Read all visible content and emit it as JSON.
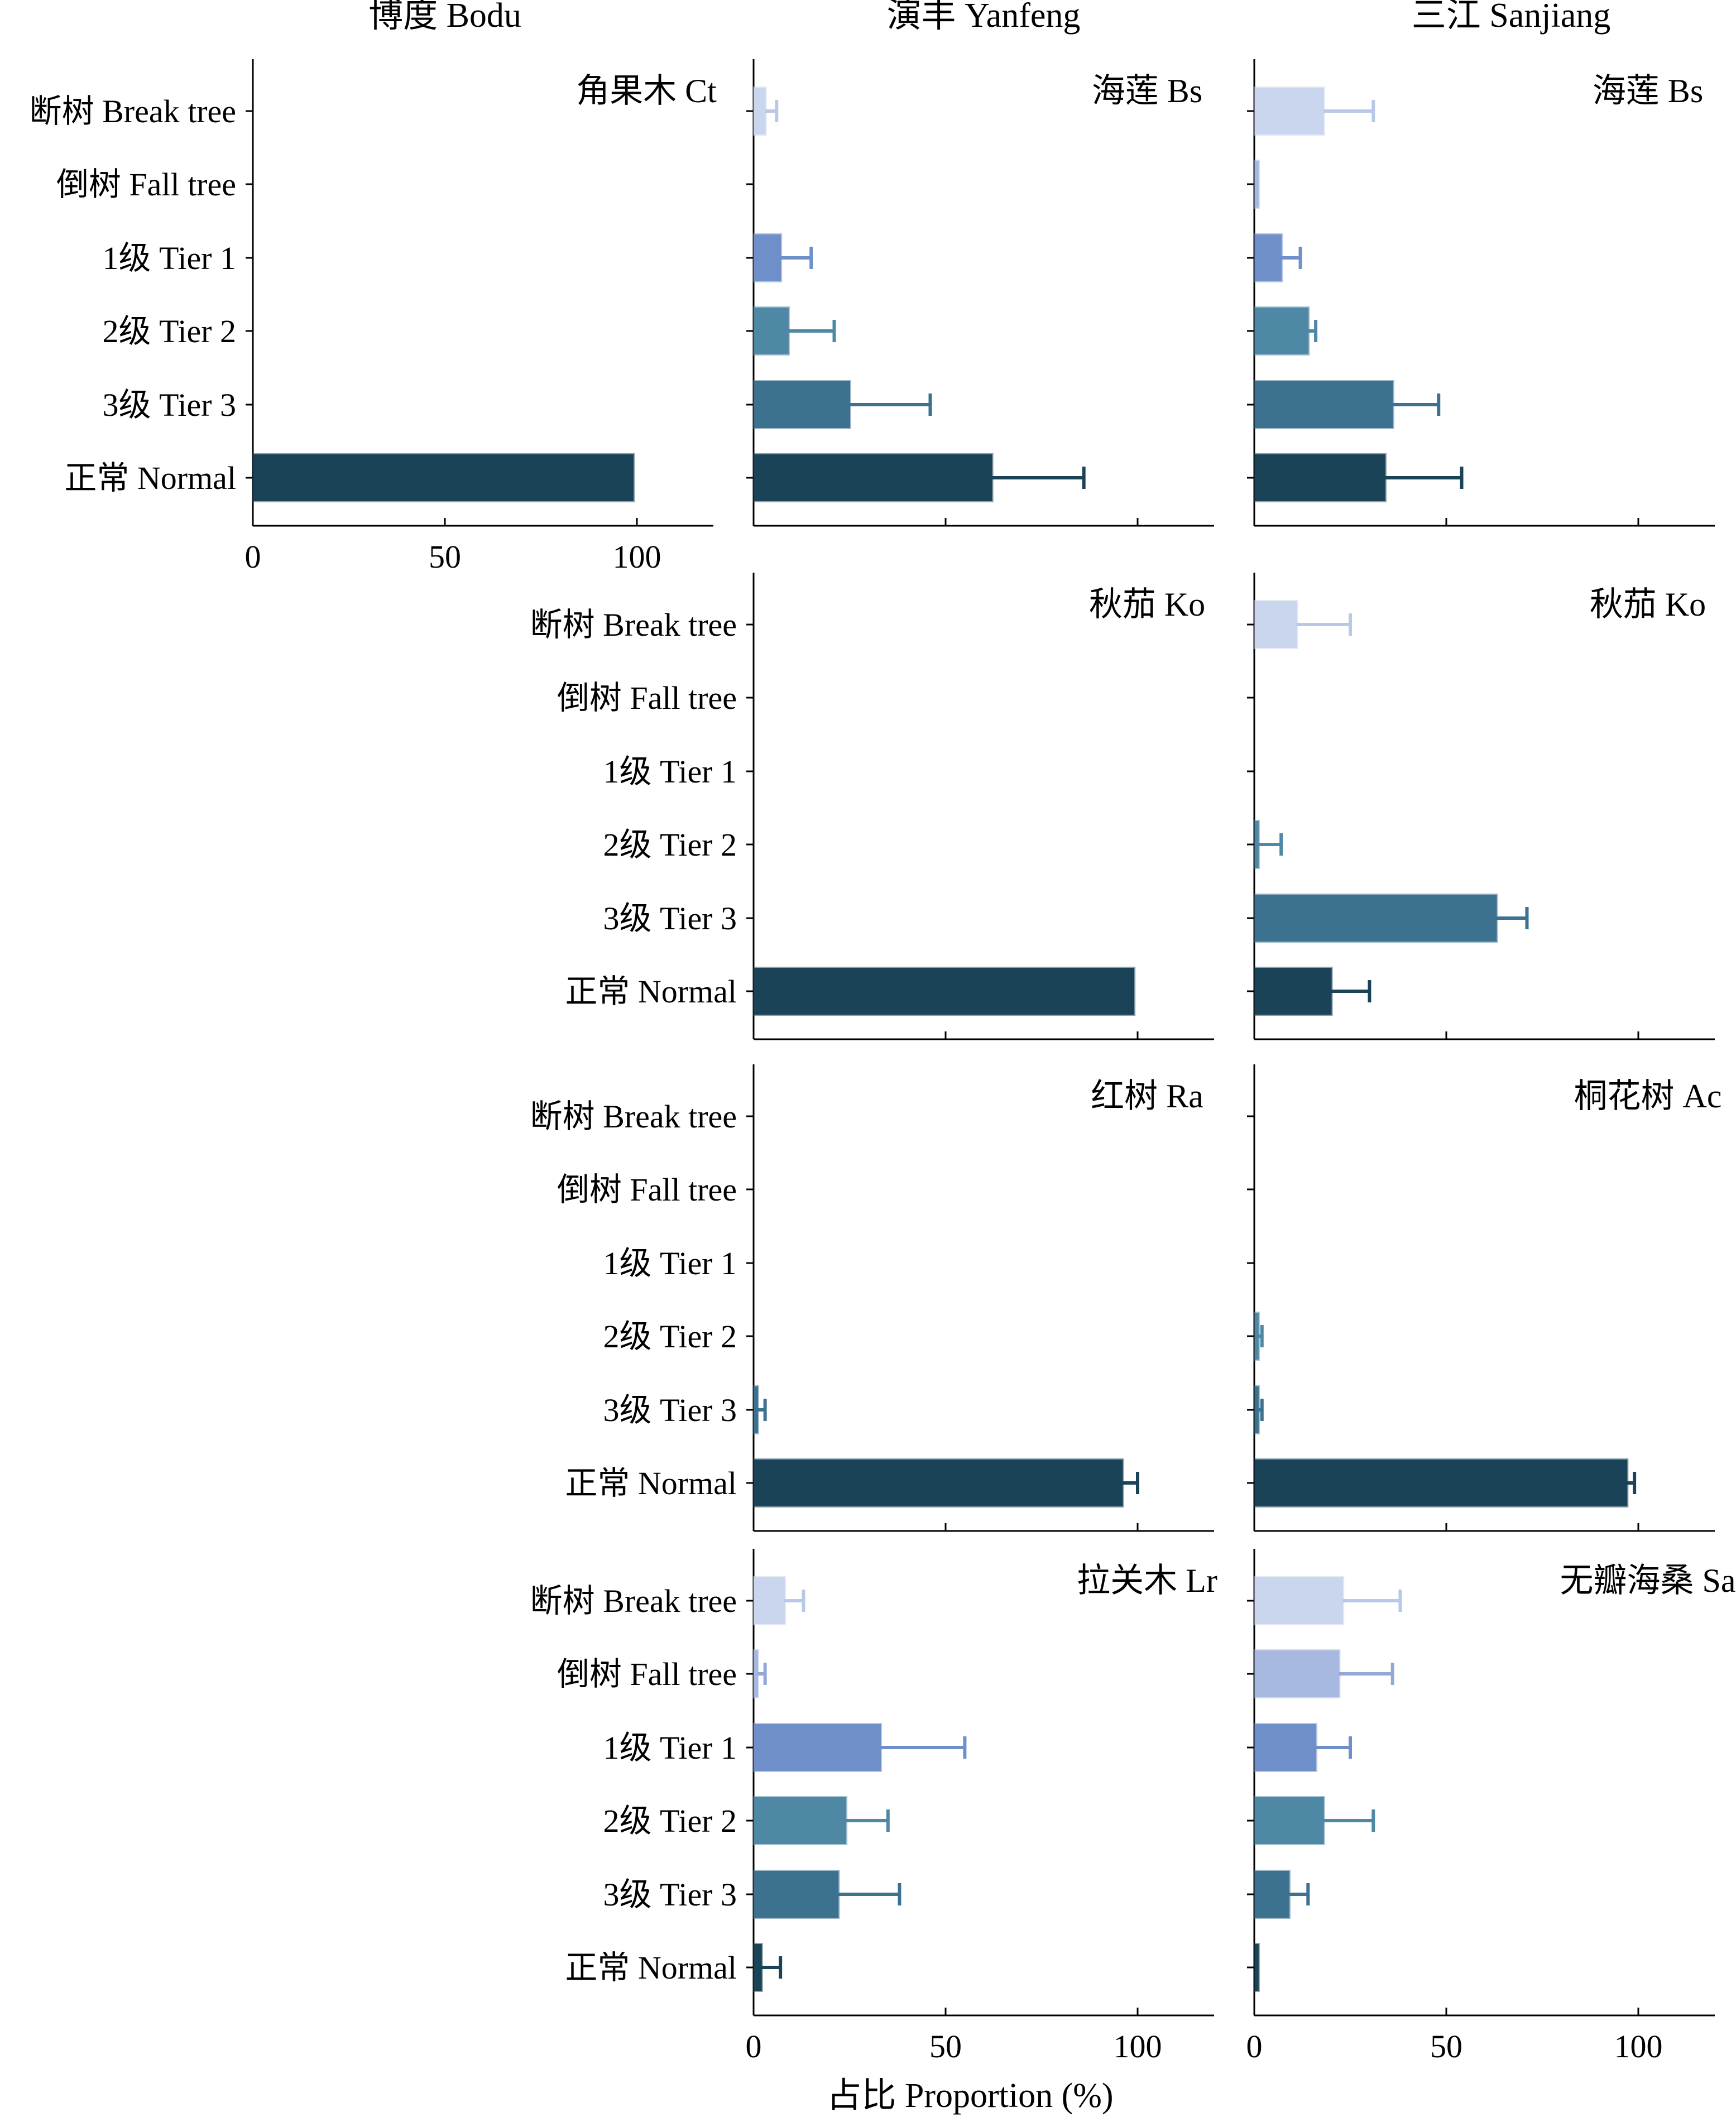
{
  "column_titles": [
    "博度 Bodu",
    "演丰 Yanfeng",
    "三江 Sanjiang"
  ],
  "row_categories": [
    "断树 Break tree",
    "倒树 Fall tree",
    "1级 Tier 1",
    "2级 Tier 2",
    "3级 Tier 3",
    "正常 Normal"
  ],
  "xlabel": "占比 Proportion (%)",
  "x_ticks": [
    0,
    50,
    100
  ],
  "colors": [
    "#c9d6ee",
    "#a7b9e0",
    "#6f8fcb",
    "#4f88a5",
    "#3d7190",
    "#1a4357"
  ],
  "chart_data": [
    {
      "type": "bar",
      "title": "角果木 Ct",
      "column": "博度 Bodu",
      "xlim": [
        0,
        120
      ],
      "categories": [
        "断树 Break tree",
        "倒树 Fall tree",
        "1级 Tier 1",
        "2级 Tier 2",
        "3级 Tier 3",
        "正常 Normal"
      ],
      "values": [
        0,
        0,
        0,
        0,
        0,
        99
      ],
      "errors": [
        0,
        0,
        0,
        0,
        0,
        0
      ]
    },
    {
      "type": "bar",
      "title": "海莲 Bs",
      "column": "演丰 Yanfeng",
      "xlim": [
        0,
        120
      ],
      "categories": [
        "断树 Break tree",
        "倒树 Fall tree",
        "1级 Tier 1",
        "2级 Tier 2",
        "3级 Tier 3",
        "正常 Normal"
      ],
      "values": [
        3,
        0,
        7,
        9,
        25,
        62
      ],
      "errors": [
        3,
        0,
        8,
        12,
        21,
        24
      ]
    },
    {
      "type": "bar",
      "title": "海莲 Bs",
      "column": "三江 Sanjiang",
      "xlim": [
        0,
        120
      ],
      "categories": [
        "断树 Break tree",
        "倒树 Fall tree",
        "1级 Tier 1",
        "2级 Tier 2",
        "3级 Tier 3",
        "正常 Normal"
      ],
      "values": [
        18,
        1,
        7,
        14,
        36,
        34
      ],
      "errors": [
        13,
        0,
        5,
        2,
        12,
        20
      ]
    },
    {
      "type": "bar",
      "title": "秋茄 Ko",
      "column": "演丰 Yanfeng",
      "xlim": [
        0,
        120
      ],
      "categories": [
        "断树 Break tree",
        "倒树 Fall tree",
        "1级 Tier 1",
        "2级 Tier 2",
        "3级 Tier 3",
        "正常 Normal"
      ],
      "values": [
        0,
        0,
        0,
        0,
        0,
        99
      ],
      "errors": [
        0,
        0,
        0,
        0,
        0,
        0
      ]
    },
    {
      "type": "bar",
      "title": "秋茄 Ko",
      "column": "三江 Sanjiang",
      "xlim": [
        0,
        120
      ],
      "categories": [
        "断树 Break tree",
        "倒树 Fall tree",
        "1级 Tier 1",
        "2级 Tier 2",
        "3级 Tier 3",
        "正常 Normal"
      ],
      "values": [
        11,
        0,
        0,
        1,
        63,
        20
      ],
      "errors": [
        14,
        0,
        0,
        6,
        8,
        10
      ]
    },
    {
      "type": "bar",
      "title": "红树 Ra",
      "column": "演丰 Yanfeng",
      "xlim": [
        0,
        120
      ],
      "categories": [
        "断树 Break tree",
        "倒树 Fall tree",
        "1级 Tier 1",
        "2级 Tier 2",
        "3级 Tier 3",
        "正常 Normal"
      ],
      "values": [
        0,
        0,
        0,
        0,
        1,
        96
      ],
      "errors": [
        0,
        0,
        0,
        0,
        2,
        4
      ]
    },
    {
      "type": "bar",
      "title": "桐花树 Ac",
      "column": "三江 Sanjiang",
      "xlim": [
        0,
        120
      ],
      "categories": [
        "断树 Break tree",
        "倒树 Fall tree",
        "1级 Tier 1",
        "2级 Tier 2",
        "3级 Tier 3",
        "正常 Normal"
      ],
      "values": [
        0,
        0,
        0,
        1,
        1,
        97
      ],
      "errors": [
        0,
        0,
        0,
        1,
        1,
        2
      ]
    },
    {
      "type": "bar",
      "title": "拉关木 Lr",
      "column": "演丰 Yanfeng",
      "xlim": [
        0,
        120
      ],
      "categories": [
        "断树 Break tree",
        "倒树 Fall tree",
        "1级 Tier 1",
        "2级 Tier 2",
        "3级 Tier 3",
        "正常 Normal"
      ],
      "values": [
        8,
        1,
        33,
        24,
        22,
        2
      ],
      "errors": [
        5,
        2,
        22,
        11,
        16,
        5
      ]
    },
    {
      "type": "bar",
      "title": "无瓣海桑 Sa",
      "column": "三江 Sanjiang",
      "xlim": [
        0,
        120
      ],
      "categories": [
        "断树 Break tree",
        "倒树 Fall tree",
        "1级 Tier 1",
        "2级 Tier 2",
        "3级 Tier 3",
        "正常 Normal"
      ],
      "values": [
        23,
        22,
        16,
        18,
        9,
        1
      ],
      "errors": [
        15,
        14,
        9,
        13,
        5,
        0
      ]
    }
  ]
}
